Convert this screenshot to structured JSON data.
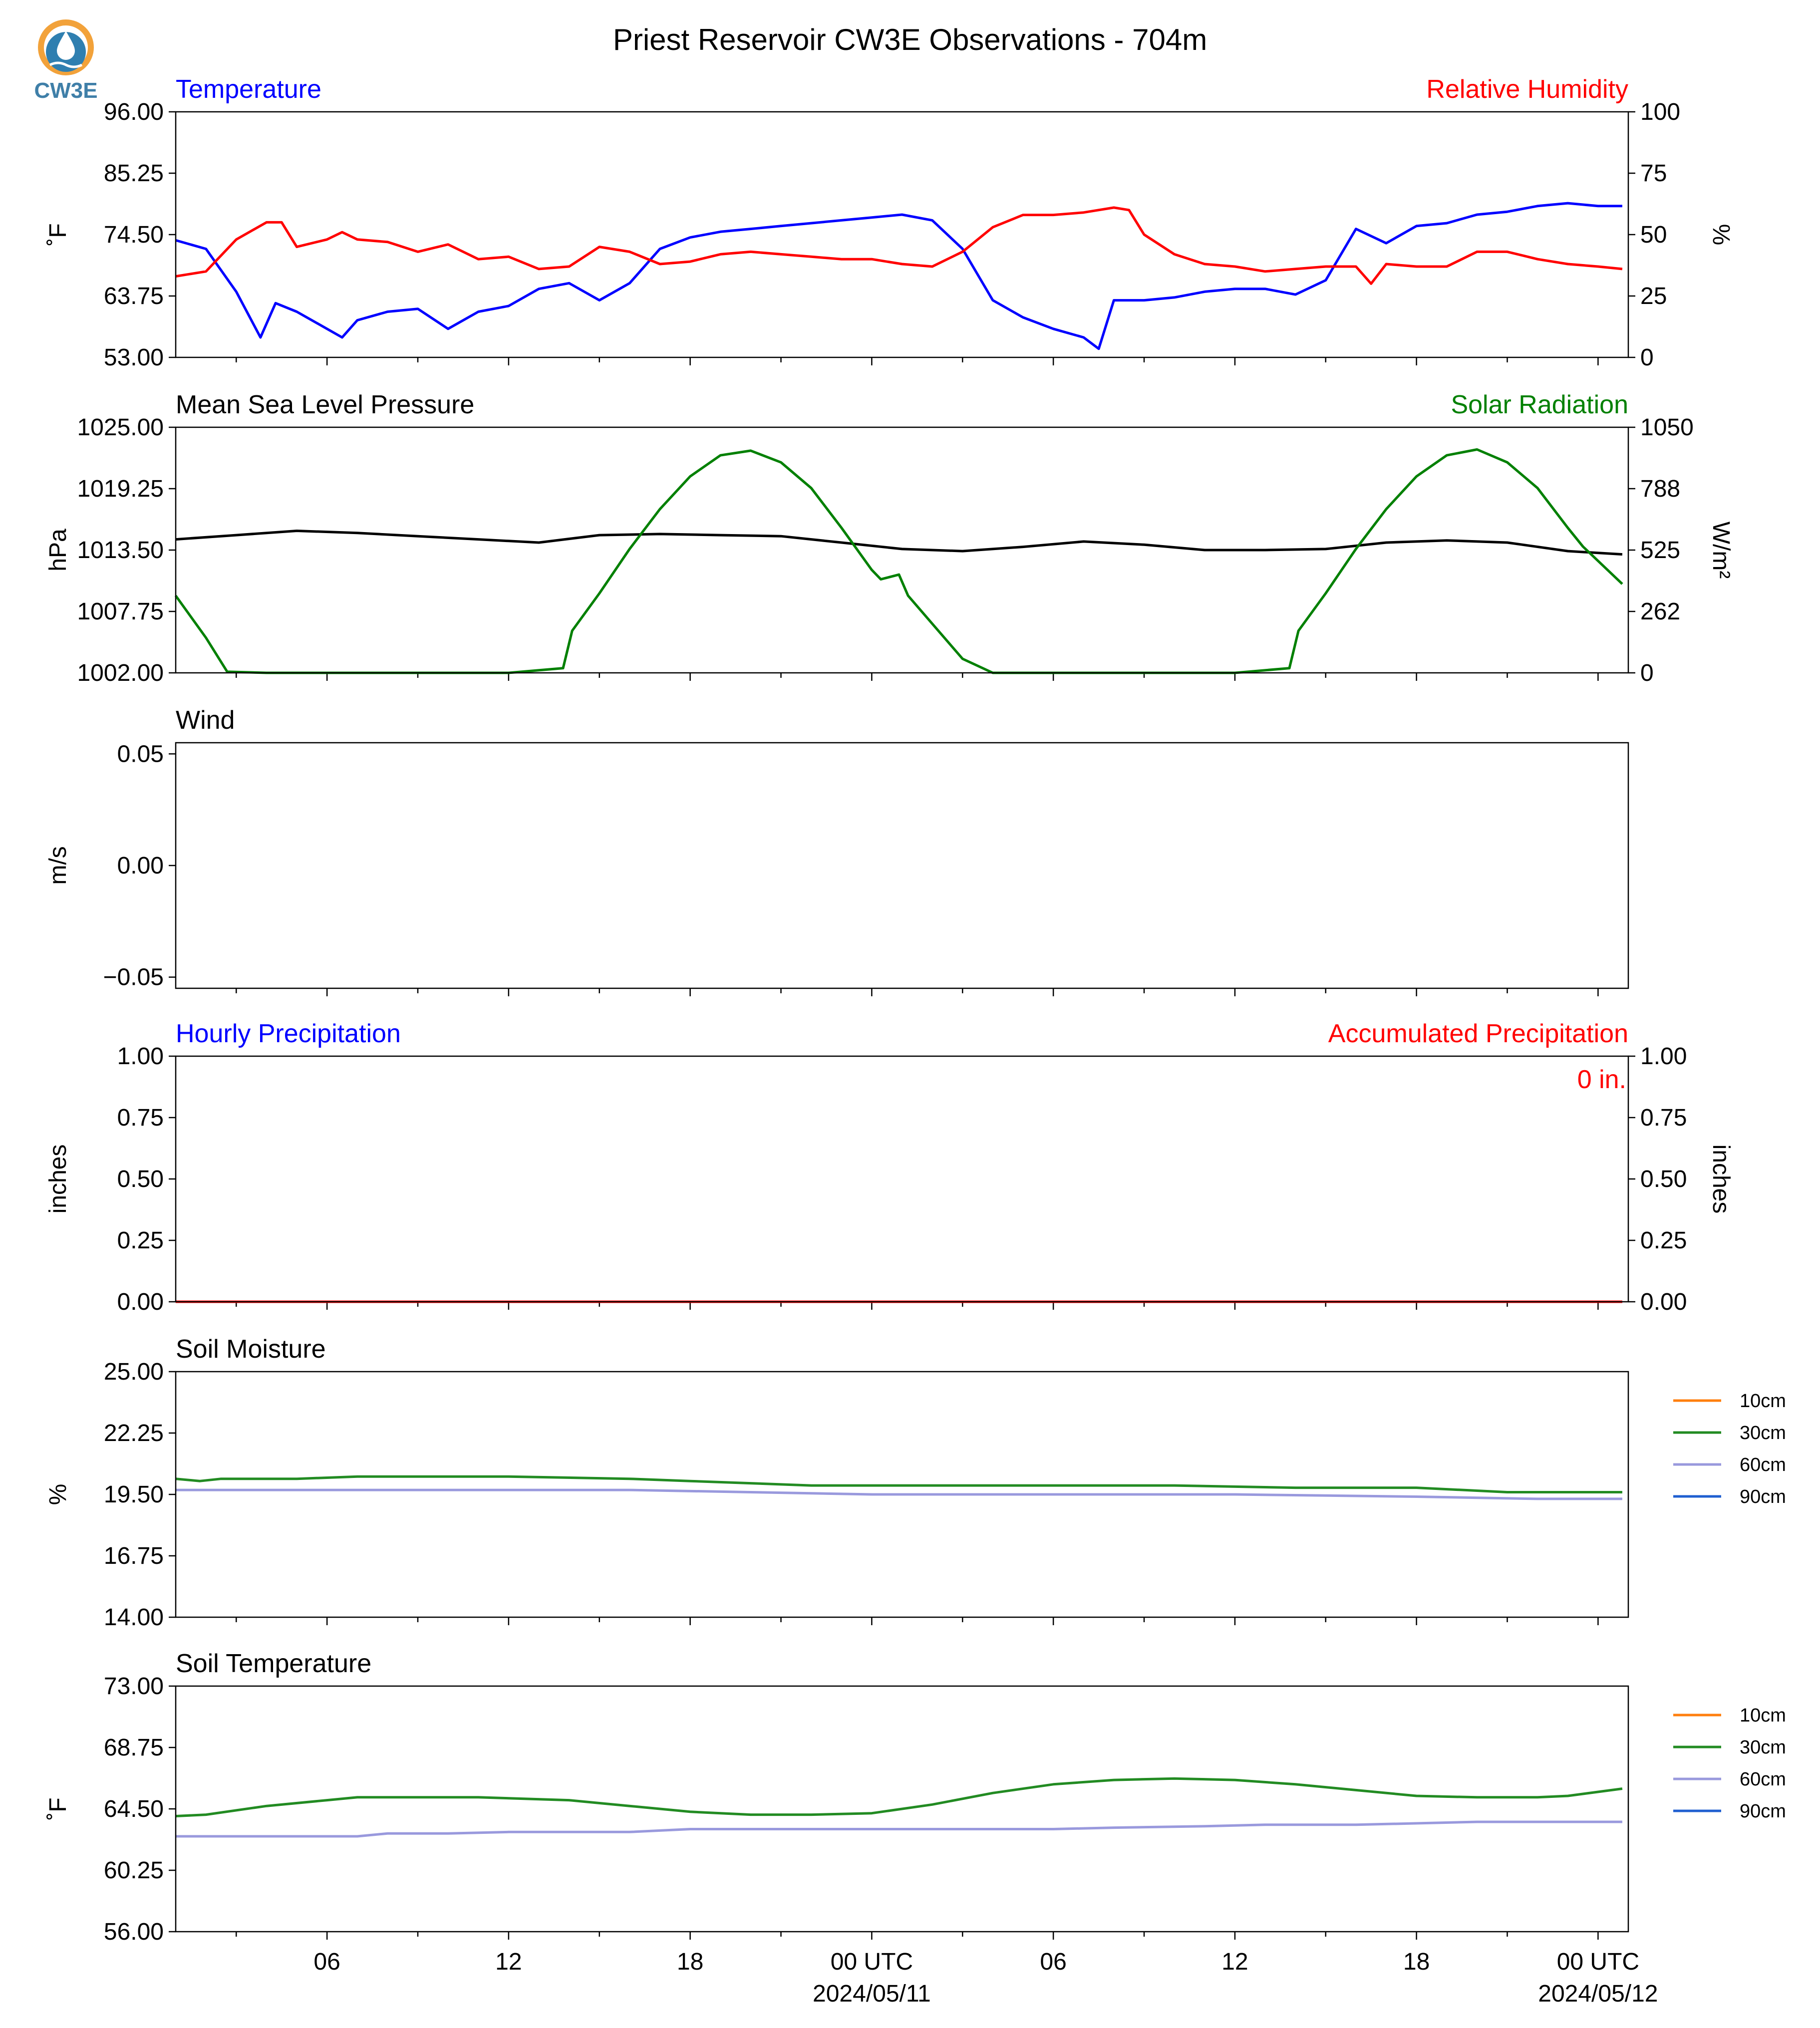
{
  "figure": {
    "title": "Priest Reservoir CW3E Observations - 704m",
    "logo_text": "CW3E",
    "logo_icon": "cw3e-water-drop-icon",
    "x_ticks": [
      {
        "hour": 6,
        "label": "06",
        "sublabel": ""
      },
      {
        "hour": 12,
        "label": "12",
        "sublabel": ""
      },
      {
        "hour": 18,
        "label": "18",
        "sublabel": ""
      },
      {
        "hour": 24,
        "label": "00 UTC",
        "sublabel": "2024/05/11"
      },
      {
        "hour": 30,
        "label": "06",
        "sublabel": ""
      },
      {
        "hour": 36,
        "label": "12",
        "sublabel": ""
      },
      {
        "hour": 42,
        "label": "18",
        "sublabel": ""
      },
      {
        "hour": 48,
        "label": "00 UTC",
        "sublabel": "2024/05/12"
      }
    ]
  },
  "chart_data": [
    {
      "type": "line",
      "id": "temperature-rh",
      "title_left": "Temperature",
      "title_left_color": "#0000ff",
      "title_right": "Relative Humidity",
      "title_right_color": "#ff0000",
      "ylabel": "˚F",
      "ylim": [
        53,
        96
      ],
      "yticks": [
        "53.00",
        "63.75",
        "74.50",
        "85.25",
        "96.00"
      ],
      "y2label": "%",
      "y2lim": [
        0,
        100
      ],
      "y2ticks": [
        "0",
        "25",
        "50",
        "75",
        "100"
      ],
      "series": [
        {
          "axis": "left",
          "color": "#0000ff",
          "x": [
            1,
            2,
            3,
            3.8,
            4.3,
            5,
            6,
            6.5,
            7,
            8,
            9,
            10,
            11,
            12,
            13,
            14,
            15,
            16,
            17,
            18,
            19,
            20,
            21,
            22,
            23,
            24,
            25,
            26,
            27,
            28,
            29,
            30,
            31,
            31.5,
            32,
            33,
            34,
            35,
            36,
            37,
            38,
            39,
            40,
            41,
            42,
            43,
            44,
            45,
            46,
            47,
            48,
            48.8
          ],
          "y": [
            73.5,
            72,
            64.5,
            56.5,
            62.5,
            61,
            58,
            56.5,
            59.5,
            61,
            61.5,
            58,
            61,
            62,
            65,
            66,
            63,
            66,
            72,
            74,
            75,
            75.5,
            76,
            76.5,
            77,
            77.5,
            78,
            77,
            72,
            63,
            60,
            58,
            56.5,
            54.5,
            63,
            63,
            63.5,
            64.5,
            65,
            65,
            64,
            66.5,
            75.5,
            73,
            76,
            76.5,
            78,
            78.5,
            79.5,
            80,
            79.5,
            79.5
          ]
        },
        {
          "axis": "right",
          "color": "#ff0000",
          "x": [
            1,
            2,
            3,
            4,
            4.5,
            5,
            6,
            6.5,
            7,
            8,
            9,
            10,
            11,
            12,
            13,
            14,
            15,
            16,
            17,
            18,
            19,
            20,
            21,
            22,
            23,
            24,
            25,
            26,
            27,
            28,
            29,
            30,
            31,
            32,
            32.5,
            33,
            34,
            35,
            36,
            37,
            38,
            39,
            40,
            40.5,
            41,
            42,
            43,
            44,
            45,
            46,
            47,
            48,
            48.8
          ],
          "y": [
            33,
            35,
            48,
            55,
            55,
            45,
            48,
            51,
            48,
            47,
            43,
            46,
            40,
            41,
            36,
            37,
            45,
            43,
            38,
            39,
            42,
            43,
            42,
            41,
            40,
            40,
            38,
            37,
            43,
            53,
            58,
            58,
            59,
            61,
            60,
            50,
            42,
            38,
            37,
            35,
            36,
            37,
            37,
            30,
            38,
            37,
            37,
            43,
            43,
            40,
            38,
            37,
            36
          ]
        }
      ]
    },
    {
      "type": "line",
      "id": "pressure-solar",
      "title_left": "Mean Sea Level Pressure",
      "title_left_color": "#000000",
      "title_right": "Solar Radiation",
      "title_right_color": "#008000",
      "ylabel": "hPa",
      "ylim": [
        1002,
        1025
      ],
      "yticks": [
        "1002.00",
        "1007.75",
        "1013.50",
        "1019.25",
        "1025.00"
      ],
      "y2label": "W/m²",
      "y2lim": [
        0,
        1050
      ],
      "y2ticks": [
        "0",
        "262",
        "525",
        "788",
        "1050"
      ],
      "series": [
        {
          "axis": "left",
          "color": "#000000",
          "x": [
            1,
            3,
            5,
            7,
            9,
            11,
            13,
            15,
            17,
            19,
            21,
            23,
            25,
            27,
            29,
            31,
            33,
            35,
            37,
            39,
            41,
            43,
            45,
            47,
            48.8
          ],
          "y": [
            1014.5,
            1014.9,
            1015.3,
            1015.1,
            1014.8,
            1014.5,
            1014.2,
            1014.9,
            1015.0,
            1014.9,
            1014.8,
            1014.2,
            1013.6,
            1013.4,
            1013.8,
            1014.3,
            1014.0,
            1013.5,
            1013.5,
            1013.6,
            1014.2,
            1014.4,
            1014.2,
            1013.4,
            1013.1
          ]
        },
        {
          "axis": "right",
          "color": "#008000",
          "x": [
            1,
            2,
            2.7,
            4,
            6,
            8,
            10,
            12,
            13.8,
            14.1,
            15,
            16,
            17,
            18,
            19,
            20,
            21,
            22,
            23,
            24,
            24.3,
            24.9,
            25.2,
            26,
            27,
            28,
            30,
            32,
            34,
            36,
            37.8,
            38.1,
            39,
            40,
            41,
            42,
            43,
            44,
            45,
            46,
            47,
            47.5,
            48.8
          ],
          "y": [
            330,
            150,
            5,
            0,
            0,
            0,
            0,
            0,
            20,
            180,
            340,
            530,
            700,
            840,
            930,
            950,
            900,
            790,
            620,
            440,
            400,
            420,
            330,
            210,
            60,
            0,
            0,
            0,
            0,
            0,
            20,
            180,
            340,
            530,
            700,
            840,
            930,
            955,
            900,
            790,
            620,
            540,
            380
          ]
        }
      ]
    },
    {
      "type": "line",
      "id": "wind",
      "title_left": "Wind",
      "title_left_color": "#000000",
      "title_right": "",
      "ylabel": "m/s",
      "ylim": [
        -0.055,
        0.055
      ],
      "yticks": [
        "−0.05",
        "0.00",
        "0.05"
      ],
      "ytick_values": [
        -0.05,
        0,
        0.05
      ],
      "series": []
    },
    {
      "type": "line",
      "id": "precipitation",
      "title_left": "Hourly Precipitation",
      "title_left_color": "#0000ff",
      "title_right": "Accumulated Precipitation",
      "title_right_color": "#ff0000",
      "annotation": "0 in.",
      "annotation_color": "#ff0000",
      "ylabel": "inches",
      "ylim": [
        0,
        1
      ],
      "yticks": [
        "0.00",
        "0.25",
        "0.50",
        "0.75",
        "1.00"
      ],
      "y2label": "inches",
      "y2lim": [
        0,
        1
      ],
      "y2ticks": [
        "0.00",
        "0.25",
        "0.50",
        "0.75",
        "1.00"
      ],
      "series": [
        {
          "axis": "left",
          "color": "#0000ff",
          "x": [
            1,
            48.8
          ],
          "y": [
            0,
            0
          ]
        },
        {
          "axis": "right",
          "color": "#ff0000",
          "x": [
            1,
            48.8
          ],
          "y": [
            0,
            0
          ]
        }
      ]
    },
    {
      "type": "line",
      "id": "soil-moisture",
      "title_left": "Soil Moisture",
      "title_left_color": "#000000",
      "title_right": "",
      "ylabel": "%",
      "ylim": [
        14,
        25
      ],
      "yticks": [
        "14.00",
        "16.75",
        "19.50",
        "22.25",
        "25.00"
      ],
      "legend": [
        {
          "label": "10cm",
          "color": "#ff7f0e"
        },
        {
          "label": "30cm",
          "color": "#228b22"
        },
        {
          "label": "60cm",
          "color": "#9999dd"
        },
        {
          "label": "90cm",
          "color": "#1f5fd0"
        }
      ],
      "series": [
        {
          "name": "30cm",
          "color": "#228b22",
          "x": [
            1,
            1.8,
            2.5,
            5,
            7,
            10,
            12,
            16,
            18,
            20,
            22,
            26,
            30,
            34,
            38,
            42,
            45,
            48.8
          ],
          "y": [
            20.2,
            20.1,
            20.2,
            20.2,
            20.3,
            20.3,
            20.3,
            20.2,
            20.1,
            20.0,
            19.9,
            19.9,
            19.9,
            19.9,
            19.8,
            19.8,
            19.6,
            19.6
          ]
        },
        {
          "name": "60cm",
          "color": "#9999dd",
          "x": [
            1,
            5,
            8,
            12,
            16,
            20,
            24,
            26,
            30,
            36,
            42,
            46,
            48.8
          ],
          "y": [
            19.7,
            19.7,
            19.7,
            19.7,
            19.7,
            19.6,
            19.5,
            19.5,
            19.5,
            19.5,
            19.4,
            19.3,
            19.3
          ]
        }
      ]
    },
    {
      "type": "line",
      "id": "soil-temperature",
      "title_left": "Soil Temperature",
      "title_left_color": "#000000",
      "title_right": "",
      "ylabel": "˚F",
      "ylim": [
        56,
        73
      ],
      "yticks": [
        "56.00",
        "60.25",
        "64.50",
        "68.75",
        "73.00"
      ],
      "legend": [
        {
          "label": "10cm",
          "color": "#ff7f0e"
        },
        {
          "label": "30cm",
          "color": "#228b22"
        },
        {
          "label": "60cm",
          "color": "#9999dd"
        },
        {
          "label": "90cm",
          "color": "#1f5fd0"
        }
      ],
      "series": [
        {
          "name": "30cm",
          "color": "#228b22",
          "x": [
            1,
            2,
            4,
            6,
            7,
            11,
            14,
            16,
            18,
            20,
            22,
            24,
            26,
            28,
            30,
            32,
            34,
            36,
            38,
            40,
            42,
            44,
            46,
            47,
            48.8
          ],
          "y": [
            64.0,
            64.1,
            64.7,
            65.1,
            65.3,
            65.3,
            65.1,
            64.7,
            64.3,
            64.1,
            64.1,
            64.2,
            64.8,
            65.6,
            66.2,
            66.5,
            66.6,
            66.5,
            66.2,
            65.8,
            65.4,
            65.3,
            65.3,
            65.4,
            65.9
          ]
        },
        {
          "name": "60cm",
          "color": "#9999dd",
          "x": [
            1,
            4,
            7,
            8,
            10,
            12,
            16,
            18,
            20,
            24,
            28,
            30,
            32,
            35,
            37,
            40,
            44,
            48.8
          ],
          "y": [
            62.6,
            62.6,
            62.6,
            62.8,
            62.8,
            62.9,
            62.9,
            63.1,
            63.1,
            63.1,
            63.1,
            63.1,
            63.2,
            63.3,
            63.4,
            63.4,
            63.6,
            63.6
          ]
        }
      ]
    }
  ]
}
